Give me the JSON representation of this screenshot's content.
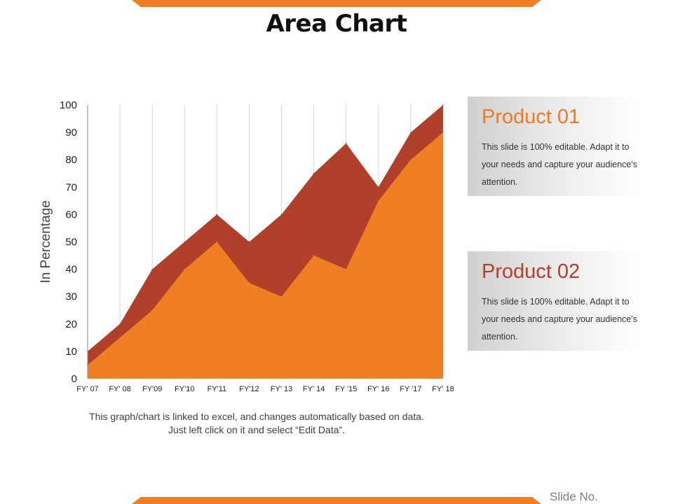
{
  "slide": {
    "title": "Area Chart",
    "caption": "This graph/chart is linked to excel, and changes automatically based on data. Just left click on it and select “Edit Data”.",
    "slide_no_label": "Slide No."
  },
  "products": [
    {
      "title": "Product 01",
      "description": "This slide is 100% editable. Adapt it to your needs and capture your audience's attention."
    },
    {
      "title": "Product 02",
      "description": "This slide is 100% editable. Adapt it to your needs and capture your audience's attention."
    }
  ],
  "colors": {
    "accent": "#ef7f22",
    "series_front": "#ef7f22",
    "series_back": "#b1402a",
    "axis_text": "#222222",
    "gridline": "#cfd6dc"
  },
  "chart_data": {
    "type": "area",
    "title": "",
    "xlabel": "",
    "ylabel": "In Percentage",
    "categories": [
      "FY' 07",
      "FY' 08",
      "FY'09",
      "FY'10",
      "FY'11",
      "FY'12",
      "FY' 13",
      "FY' 14",
      "FY '15",
      "FY' 16",
      "FY '17",
      "FY' 18"
    ],
    "ylim": [
      0,
      100
    ],
    "yticks": [
      0,
      10,
      20,
      30,
      40,
      50,
      60,
      70,
      80,
      90,
      100
    ],
    "grid": "vertical",
    "legend": "none",
    "series": [
      {
        "values": [
          10,
          20,
          40,
          50,
          60,
          50,
          60,
          75,
          86,
          70,
          90,
          100
        ],
        "color": "#b1402a"
      },
      {
        "values": [
          5,
          15,
          25,
          40,
          50,
          35,
          30,
          45,
          40,
          65,
          80,
          90
        ],
        "color": "#ef7f22"
      }
    ]
  }
}
